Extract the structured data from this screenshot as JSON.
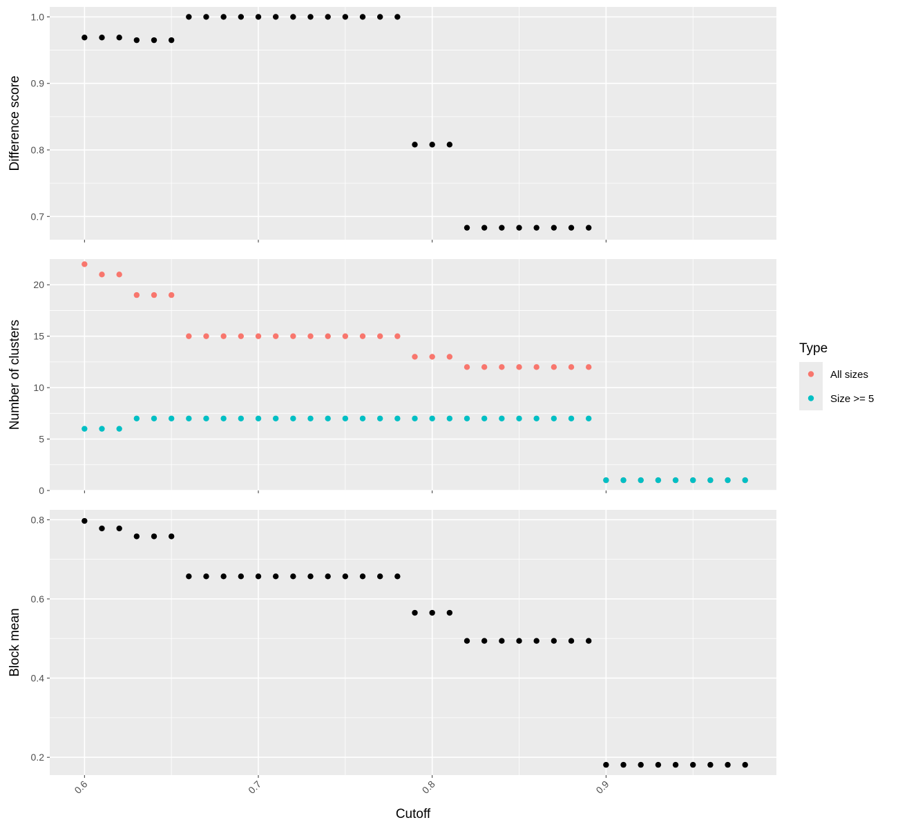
{
  "chart_data": {
    "type": "scatter",
    "x_label": "Cutoff",
    "x_ticks": [
      0.6,
      0.7,
      0.8,
      0.9
    ],
    "x_tick_labels": [
      "0.6",
      "0.7",
      "0.8",
      "0.9"
    ],
    "xlim": [
      0.58,
      0.998
    ],
    "x": [
      0.6,
      0.61,
      0.62,
      0.63,
      0.64,
      0.65,
      0.66,
      0.67,
      0.68,
      0.69,
      0.7,
      0.71,
      0.72,
      0.73,
      0.74,
      0.75,
      0.76,
      0.77,
      0.78,
      0.79,
      0.8,
      0.81,
      0.82,
      0.83,
      0.84,
      0.85,
      0.86,
      0.87,
      0.88,
      0.89,
      0.9,
      0.91,
      0.92,
      0.93,
      0.94,
      0.95,
      0.96,
      0.97,
      0.98
    ],
    "legend": {
      "title": "Type",
      "position": "right",
      "entries": [
        {
          "label": "All sizes",
          "color": "#F8766D"
        },
        {
          "label": "Size >= 5",
          "color": "#00BFC4"
        }
      ]
    },
    "panels": [
      {
        "id": "difference",
        "ylabel": "Difference score",
        "ylim": [
          0.665,
          1.015
        ],
        "y_ticks": [
          0.7,
          0.8,
          0.9,
          1.0
        ],
        "y_tick_labels": [
          "0.7",
          "0.8",
          "0.9",
          "1.0"
        ],
        "series": [
          {
            "color": "#000000",
            "x": [
              0.6,
              0.61,
              0.62,
              0.63,
              0.64,
              0.65,
              0.66,
              0.67,
              0.68,
              0.69,
              0.7,
              0.71,
              0.72,
              0.73,
              0.74,
              0.75,
              0.76,
              0.77,
              0.78,
              0.79,
              0.8,
              0.81,
              0.82,
              0.83,
              0.84,
              0.85,
              0.86,
              0.87,
              0.88,
              0.89
            ],
            "y": [
              0.969,
              0.969,
              0.969,
              0.965,
              0.965,
              0.965,
              1.0,
              1.0,
              1.0,
              1.0,
              1.0,
              1.0,
              1.0,
              1.0,
              1.0,
              1.0,
              1.0,
              1.0,
              1.0,
              0.808,
              0.808,
              0.808,
              0.683,
              0.683,
              0.683,
              0.683,
              0.683,
              0.683,
              0.683,
              0.683
            ]
          }
        ]
      },
      {
        "id": "clusters",
        "ylabel": "Number of clusters",
        "ylim": [
          0,
          22.5
        ],
        "y_ticks": [
          0,
          5,
          10,
          15,
          20
        ],
        "y_tick_labels": [
          "0",
          "5",
          "10",
          "15",
          "20"
        ],
        "series": [
          {
            "name": "All sizes",
            "color": "#F8766D",
            "x": [
              0.6,
              0.61,
              0.62,
              0.63,
              0.64,
              0.65,
              0.66,
              0.67,
              0.68,
              0.69,
              0.7,
              0.71,
              0.72,
              0.73,
              0.74,
              0.75,
              0.76,
              0.77,
              0.78,
              0.79,
              0.8,
              0.81,
              0.82,
              0.83,
              0.84,
              0.85,
              0.86,
              0.87,
              0.88,
              0.89,
              0.9,
              0.91,
              0.92,
              0.93,
              0.94,
              0.95,
              0.96,
              0.97,
              0.98
            ],
            "y": [
              22,
              21,
              21,
              19,
              19,
              19,
              15,
              15,
              15,
              15,
              15,
              15,
              15,
              15,
              15,
              15,
              15,
              15,
              15,
              13,
              13,
              13,
              12,
              12,
              12,
              12,
              12,
              12,
              12,
              12,
              1,
              1,
              1,
              1,
              1,
              1,
              1,
              1,
              1
            ]
          },
          {
            "name": "Size >= 5",
            "color": "#00BFC4",
            "x": [
              0.6,
              0.61,
              0.62,
              0.63,
              0.64,
              0.65,
              0.66,
              0.67,
              0.68,
              0.69,
              0.7,
              0.71,
              0.72,
              0.73,
              0.74,
              0.75,
              0.76,
              0.77,
              0.78,
              0.79,
              0.8,
              0.81,
              0.82,
              0.83,
              0.84,
              0.85,
              0.86,
              0.87,
              0.88,
              0.89,
              0.9,
              0.91,
              0.92,
              0.93,
              0.94,
              0.95,
              0.96,
              0.97,
              0.98
            ],
            "y": [
              6,
              6,
              6,
              7,
              7,
              7,
              7,
              7,
              7,
              7,
              7,
              7,
              7,
              7,
              7,
              7,
              7,
              7,
              7,
              7,
              7,
              7,
              7,
              7,
              7,
              7,
              7,
              7,
              7,
              7,
              1,
              1,
              1,
              1,
              1,
              1,
              1,
              1,
              1
            ]
          }
        ]
      },
      {
        "id": "blockmean",
        "ylabel": "Block mean",
        "ylim": [
          0.155,
          0.825
        ],
        "y_ticks": [
          0.2,
          0.4,
          0.6,
          0.8
        ],
        "y_tick_labels": [
          "0.2",
          "0.4",
          "0.6",
          "0.8"
        ],
        "series": [
          {
            "color": "#000000",
            "x": [
              0.6,
              0.61,
              0.62,
              0.63,
              0.64,
              0.65,
              0.66,
              0.67,
              0.68,
              0.69,
              0.7,
              0.71,
              0.72,
              0.73,
              0.74,
              0.75,
              0.76,
              0.77,
              0.78,
              0.79,
              0.8,
              0.81,
              0.82,
              0.83,
              0.84,
              0.85,
              0.86,
              0.87,
              0.88,
              0.89,
              0.9,
              0.91,
              0.92,
              0.93,
              0.94,
              0.95,
              0.96,
              0.97,
              0.98
            ],
            "y": [
              0.797,
              0.778,
              0.778,
              0.758,
              0.758,
              0.758,
              0.657,
              0.657,
              0.657,
              0.657,
              0.657,
              0.657,
              0.657,
              0.657,
              0.657,
              0.657,
              0.657,
              0.657,
              0.657,
              0.565,
              0.565,
              0.565,
              0.494,
              0.494,
              0.494,
              0.494,
              0.494,
              0.494,
              0.494,
              0.494,
              0.181,
              0.181,
              0.181,
              0.181,
              0.181,
              0.181,
              0.181,
              0.181,
              0.181
            ]
          }
        ]
      }
    ]
  }
}
